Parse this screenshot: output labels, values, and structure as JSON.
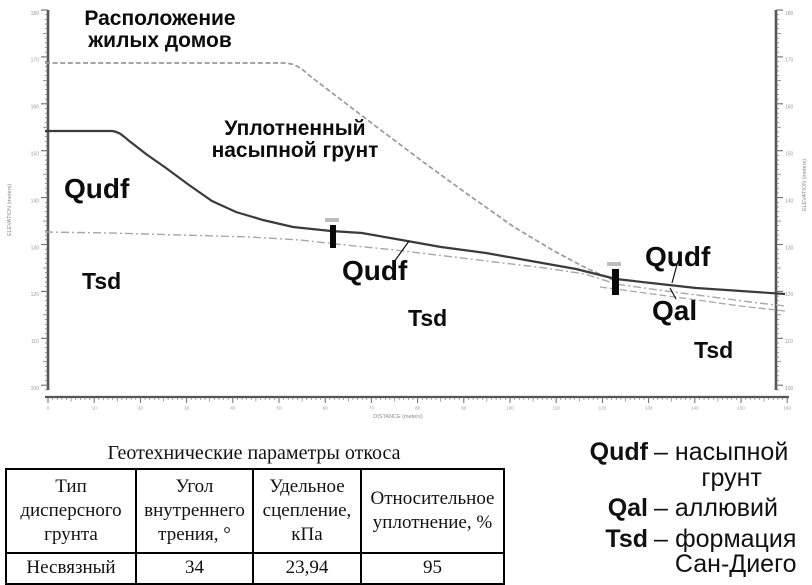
{
  "figure": {
    "annotations": {
      "housing": "Расположение\nжилых домов",
      "compacted_fill": "Уплотненный\nнасыпной грунт",
      "qudf_left": "Qudf",
      "tsd_left": "Tsd",
      "qudf_mid": "Qudf",
      "tsd_mid": "Tsd",
      "qudf_right": "Qudf",
      "qal_right": "Qal",
      "tsd_right": "Tsd"
    },
    "axes": {
      "elevation_title": "ELEVATION (meters)",
      "distance_title": "DISTANCE (meters)",
      "elevation_ticks": [
        "180",
        "170",
        "160",
        "150",
        "140",
        "130",
        "120",
        "110",
        "100"
      ],
      "distance_ticks": [
        "0",
        "10",
        "20",
        "30",
        "40",
        "50",
        "60",
        "70",
        "80",
        "90",
        "100",
        "110",
        "120",
        "130",
        "140",
        "150",
        "160"
      ]
    },
    "colors": {
      "surface_line": "#3b3b3b",
      "contact_line": "#a8a8a8",
      "housing_line": "#9a9a9a",
      "marker": "#0a0a0a"
    }
  },
  "table": {
    "title": "Геотехнические параметры откоса",
    "headers": [
      "Тип\nдисперсного\nгрунта",
      "Угол\nвнутреннего\nтрения, °",
      "Удельное\nсцепление,\nкПа",
      "Относительное\nуплотнение, %"
    ],
    "rows": [
      [
        "Несвязный",
        "34",
        "23,94",
        "95"
      ]
    ]
  },
  "legend": {
    "items": [
      {
        "code": "Qudf",
        "dash": "–",
        "desc": "насыпной\nгрунт"
      },
      {
        "code": "Qal",
        "dash": "–",
        "desc": "аллювий"
      },
      {
        "code": "Tsd",
        "dash": "–",
        "desc": "формация\nСан-Диего"
      }
    ]
  }
}
